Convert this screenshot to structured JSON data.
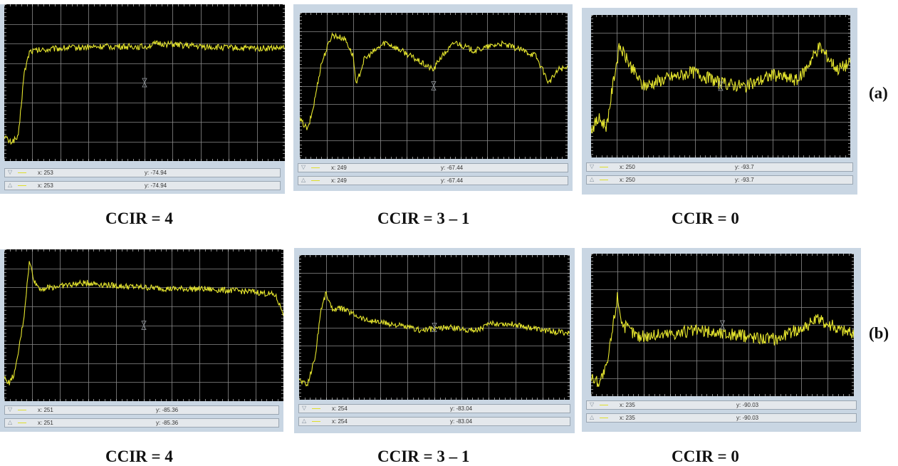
{
  "rows": [
    {
      "label": "(a)",
      "panels": [
        {
          "caption": "CCIR = 4",
          "readouts": [
            {
              "marker": "▽",
              "x": "x: 253",
              "y": "y: -74.94"
            },
            {
              "marker": "△",
              "x": "x: 253",
              "y": "y: -74.94"
            }
          ]
        },
        {
          "caption": "CCIR = 3 – 1",
          "readouts": [
            {
              "marker": "▽",
              "x": "x: 249",
              "y": "y: -67.44"
            },
            {
              "marker": "△",
              "x": "x: 249",
              "y": "y: -67.44"
            }
          ]
        },
        {
          "caption": "CCIR = 0",
          "readouts": [
            {
              "marker": "▽",
              "x": "x: 250",
              "y": "y: -93.7"
            },
            {
              "marker": "△",
              "x": "x: 250",
              "y": "y: -93.7"
            }
          ]
        }
      ]
    },
    {
      "label": "(b)",
      "panels": [
        {
          "caption": "CCIR = 4",
          "readouts": [
            {
              "marker": "▽",
              "x": "x: 251",
              "y": "y: -85.36"
            },
            {
              "marker": "△",
              "x": "x: 251",
              "y": "y: -85.36"
            }
          ]
        },
        {
          "caption": "CCIR = 3 – 1",
          "readouts": [
            {
              "marker": "▽",
              "x": "x: 254",
              "y": "y: -83.04"
            },
            {
              "marker": "△",
              "x": "x: 254",
              "y": "y: -83.04"
            }
          ]
        },
        {
          "caption": "CCIR = 0",
          "readouts": [
            {
              "marker": "▽",
              "x": "x: 235",
              "y": "y: -90.03"
            },
            {
              "marker": "△",
              "x": "x: 235",
              "y": "y: -90.03"
            }
          ]
        }
      ]
    }
  ],
  "chart_data": [
    {
      "type": "line",
      "series": [
        {
          "color": "#e6e62e",
          "shape": [
            [
              0,
              0.16
            ],
            [
              0.02,
              0.12
            ],
            [
              0.05,
              0.15
            ],
            [
              0.07,
              0.55
            ],
            [
              0.09,
              0.7
            ],
            [
              0.2,
              0.72
            ],
            [
              0.35,
              0.73
            ],
            [
              0.5,
              0.73
            ],
            [
              0.55,
              0.75
            ],
            [
              0.7,
              0.73
            ],
            [
              0.85,
              0.72
            ],
            [
              1.0,
              0.72
            ]
          ]
        }
      ],
      "marker_x": 253,
      "marker_y": -74.94
    },
    {
      "type": "line",
      "series": [
        {
          "color": "#e6e62e",
          "shape": [
            [
              0,
              0.27
            ],
            [
              0.03,
              0.2
            ],
            [
              0.05,
              0.35
            ],
            [
              0.08,
              0.65
            ],
            [
              0.12,
              0.85
            ],
            [
              0.17,
              0.82
            ],
            [
              0.2,
              0.7
            ],
            [
              0.21,
              0.5
            ],
            [
              0.24,
              0.68
            ],
            [
              0.32,
              0.8
            ],
            [
              0.4,
              0.72
            ],
            [
              0.47,
              0.64
            ],
            [
              0.5,
              0.61
            ],
            [
              0.52,
              0.68
            ],
            [
              0.58,
              0.8
            ],
            [
              0.65,
              0.74
            ],
            [
              0.75,
              0.79
            ],
            [
              0.82,
              0.75
            ],
            [
              0.88,
              0.71
            ],
            [
              0.93,
              0.52
            ],
            [
              0.97,
              0.62
            ],
            [
              1.0,
              0.62
            ]
          ]
        }
      ],
      "marker_x": 249,
      "marker_y": -67.44
    },
    {
      "type": "line",
      "series": [
        {
          "color": "#e6e62e",
          "shape": [
            [
              0,
              0.2
            ],
            [
              0.03,
              0.27
            ],
            [
              0.06,
              0.22
            ],
            [
              0.09,
              0.58
            ],
            [
              0.11,
              0.78
            ],
            [
              0.14,
              0.68
            ],
            [
              0.2,
              0.5
            ],
            [
              0.3,
              0.56
            ],
            [
              0.4,
              0.6
            ],
            [
              0.5,
              0.52
            ],
            [
              0.6,
              0.5
            ],
            [
              0.7,
              0.58
            ],
            [
              0.8,
              0.54
            ],
            [
              0.88,
              0.78
            ],
            [
              0.95,
              0.62
            ],
            [
              1.0,
              0.66
            ]
          ]
        }
      ],
      "marker_x": 250,
      "marker_y": -93.7
    },
    {
      "type": "line",
      "series": [
        {
          "color": "#e6e62e",
          "shape": [
            [
              0,
              0.15
            ],
            [
              0.02,
              0.12
            ],
            [
              0.04,
              0.2
            ],
            [
              0.07,
              0.55
            ],
            [
              0.09,
              0.92
            ],
            [
              0.11,
              0.78
            ],
            [
              0.13,
              0.74
            ],
            [
              0.2,
              0.76
            ],
            [
              0.3,
              0.78
            ],
            [
              0.4,
              0.76
            ],
            [
              0.5,
              0.75
            ],
            [
              0.6,
              0.74
            ],
            [
              0.7,
              0.74
            ],
            [
              0.8,
              0.73
            ],
            [
              0.9,
              0.72
            ],
            [
              0.97,
              0.7
            ],
            [
              1.0,
              0.58
            ]
          ]
        }
      ],
      "marker_x": 251,
      "marker_y": -85.36
    },
    {
      "type": "line",
      "series": [
        {
          "color": "#e6e62e",
          "shape": [
            [
              0,
              0.14
            ],
            [
              0.03,
              0.1
            ],
            [
              0.06,
              0.3
            ],
            [
              0.08,
              0.62
            ],
            [
              0.1,
              0.74
            ],
            [
              0.12,
              0.63
            ],
            [
              0.16,
              0.63
            ],
            [
              0.25,
              0.55
            ],
            [
              0.35,
              0.52
            ],
            [
              0.45,
              0.48
            ],
            [
              0.55,
              0.5
            ],
            [
              0.65,
              0.48
            ],
            [
              0.72,
              0.53
            ],
            [
              0.8,
              0.52
            ],
            [
              0.9,
              0.48
            ],
            [
              1.0,
              0.46
            ]
          ]
        }
      ],
      "marker_x": 254,
      "marker_y": -83.04
    },
    {
      "type": "line",
      "series": [
        {
          "color": "#e6e62e",
          "shape": [
            [
              0,
              0.13
            ],
            [
              0.03,
              0.1
            ],
            [
              0.06,
              0.2
            ],
            [
              0.08,
              0.45
            ],
            [
              0.1,
              0.7
            ],
            [
              0.12,
              0.5
            ],
            [
              0.18,
              0.42
            ],
            [
              0.3,
              0.44
            ],
            [
              0.4,
              0.46
            ],
            [
              0.5,
              0.44
            ],
            [
              0.6,
              0.42
            ],
            [
              0.7,
              0.4
            ],
            [
              0.8,
              0.48
            ],
            [
              0.87,
              0.54
            ],
            [
              0.93,
              0.48
            ],
            [
              1.0,
              0.44
            ]
          ]
        }
      ],
      "marker_x": 235,
      "marker_y": -90.03
    }
  ]
}
